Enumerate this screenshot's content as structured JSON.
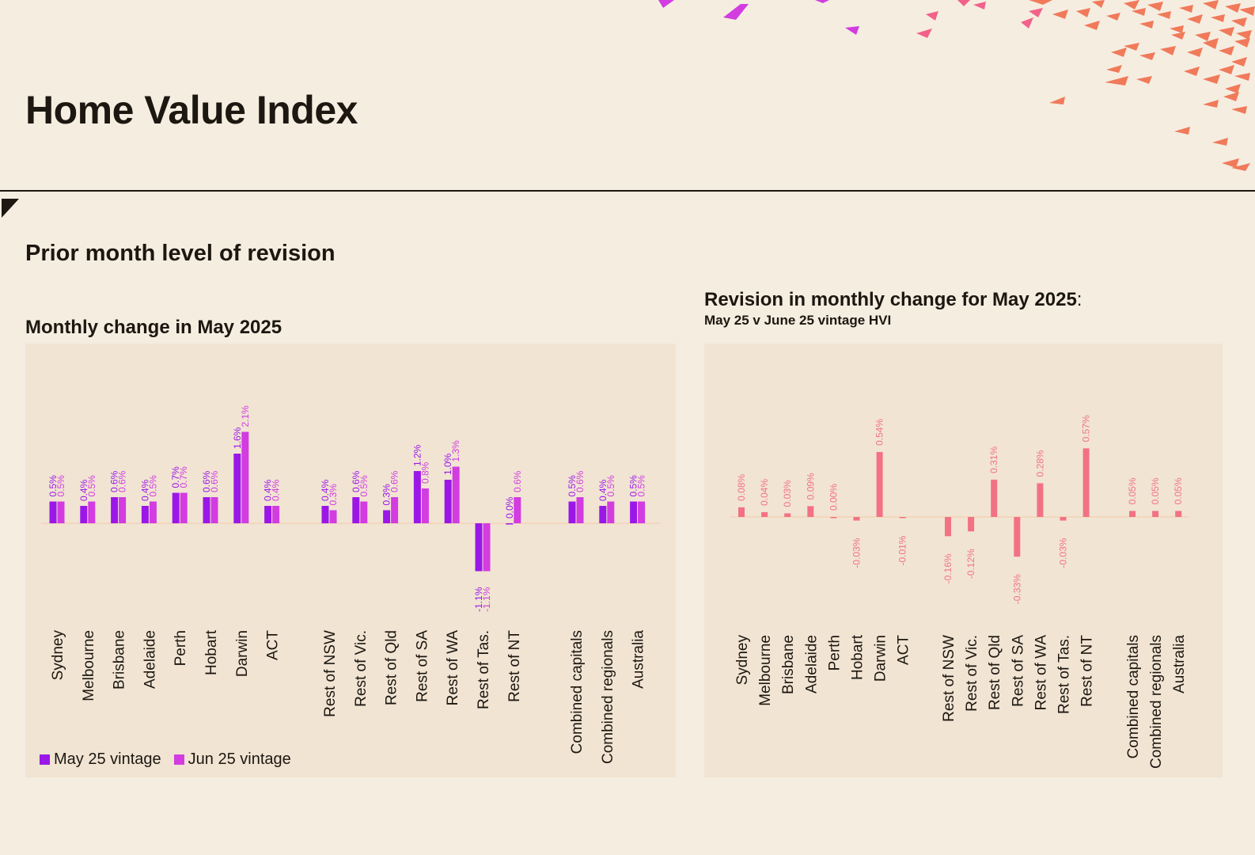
{
  "header": {
    "title": "Home Value Index"
  },
  "section": {
    "title": "Prior month level of revision"
  },
  "colors": {
    "may_vintage": "#9b17e8",
    "jun_vintage": "#d23ce0",
    "revision": "#f27284",
    "background": "#f6ede1",
    "panel": "#f1e4d3"
  },
  "chart_data": [
    {
      "type": "bar",
      "title": "Monthly change in May 2025",
      "categories": [
        "Sydney",
        "Melbourne",
        "Brisbane",
        "Adelaide",
        "Perth",
        "Hobart",
        "Darwin",
        "ACT",
        "Rest of NSW",
        "Rest of Vic.",
        "Rest of Qld",
        "Rest of SA",
        "Rest of WA",
        "Rest of Tas.",
        "Rest of NT",
        "Combined capitals",
        "Combined regionals",
        "Australia"
      ],
      "series": [
        {
          "name": "May 25 vintage",
          "values": [
            0.5,
            0.4,
            0.6,
            0.4,
            0.7,
            0.6,
            1.6,
            0.4,
            0.4,
            0.6,
            0.3,
            1.2,
            1.0,
            -1.1,
            0.0,
            0.5,
            0.4,
            0.5
          ],
          "labels": [
            "0.5%",
            "0.4%",
            "0.6%",
            "0.4%",
            "0.7%",
            "0.6%",
            "1.6%",
            "0.4%",
            "0.4%",
            "0.6%",
            "0.3%",
            "1.2%",
            "1.0%",
            "-1.1%",
            "0.0%",
            "0.5%",
            "0.4%",
            "0.5%"
          ]
        },
        {
          "name": "Jun 25 vintage",
          "values": [
            0.5,
            0.5,
            0.6,
            0.5,
            0.7,
            0.6,
            2.1,
            0.4,
            0.3,
            0.5,
            0.6,
            0.8,
            1.3,
            -1.1,
            0.6,
            0.6,
            0.5,
            0.5
          ],
          "labels": [
            "0.5%",
            "0.5%",
            "0.6%",
            "0.5%",
            "0.7%",
            "0.6%",
            "2.1%",
            "0.4%",
            "0.3%",
            "0.5%",
            "0.6%",
            "0.8%",
            "1.3%",
            "-1.1%",
            "0.6%",
            "0.6%",
            "0.5%",
            "0.5%"
          ]
        }
      ],
      "legend": "bottom-left",
      "ylim": [
        -1.5,
        2.5
      ]
    },
    {
      "type": "bar",
      "title": "Revision in monthly change for May 2025",
      "title_suffix": ":",
      "subtitle": "May 25 v June 25 vintage HVI",
      "categories": [
        "Sydney",
        "Melbourne",
        "Brisbane",
        "Adelaide",
        "Perth",
        "Hobart",
        "Darwin",
        "ACT",
        "Rest of NSW",
        "Rest of Vic.",
        "Rest of Qld",
        "Rest of SA",
        "Rest of WA",
        "Rest of Tas.",
        "Rest of NT",
        "Combined capitals",
        "Combined regionals",
        "Australia"
      ],
      "values": [
        0.08,
        0.04,
        0.03,
        0.09,
        0.0,
        -0.03,
        0.54,
        -0.01,
        -0.16,
        -0.12,
        0.31,
        -0.33,
        0.28,
        -0.03,
        0.57,
        0.05,
        0.05,
        0.05
      ],
      "labels": [
        "0.08%",
        "0.04%",
        "0.03%",
        "0.09%",
        "0.00%",
        "-0.03%",
        "0.54%",
        "-0.01%",
        "-0.16%",
        "-0.12%",
        "0.31%",
        "-0.33%",
        "0.28%",
        "-0.03%",
        "0.57%",
        "0.05%",
        "0.05%",
        "0.05%"
      ],
      "ylim": [
        -0.5,
        0.7
      ]
    }
  ]
}
